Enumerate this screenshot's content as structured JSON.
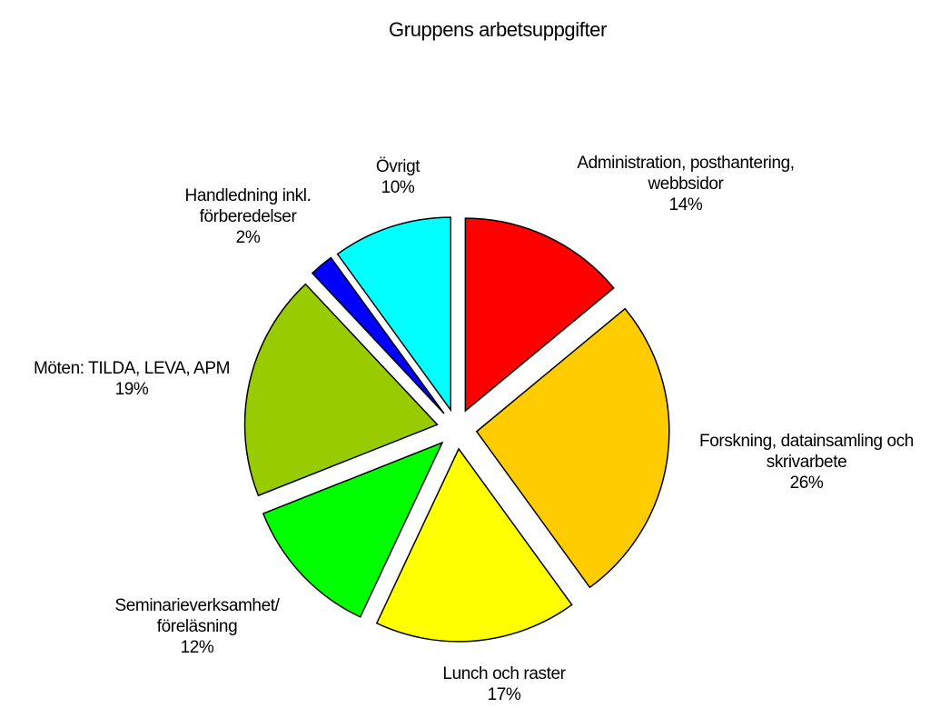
{
  "chart_data": {
    "type": "pie",
    "title": "Gruppens arbetsuppgifter",
    "categories": [
      "Administration, posthantering,\nwebbsidor",
      "Forskning, datainsamling och\nskrivarbete",
      "Lunch och raster",
      "Seminarieverksamhet/\nföreläsning",
      "Möten: TILDA, LEVA, APM",
      "Handledning inkl.\nförberedelser",
      "Övrigt"
    ],
    "values": [
      14,
      26,
      17,
      12,
      19,
      2,
      10
    ],
    "value_labels": [
      "14%",
      "26%",
      "17%",
      "12%",
      "19%",
      "2%",
      "10%"
    ],
    "colors": [
      "#ff0000",
      "#ffcc00",
      "#ffff00",
      "#00ff00",
      "#99cc00",
      "#0000ff",
      "#00ffff"
    ]
  }
}
